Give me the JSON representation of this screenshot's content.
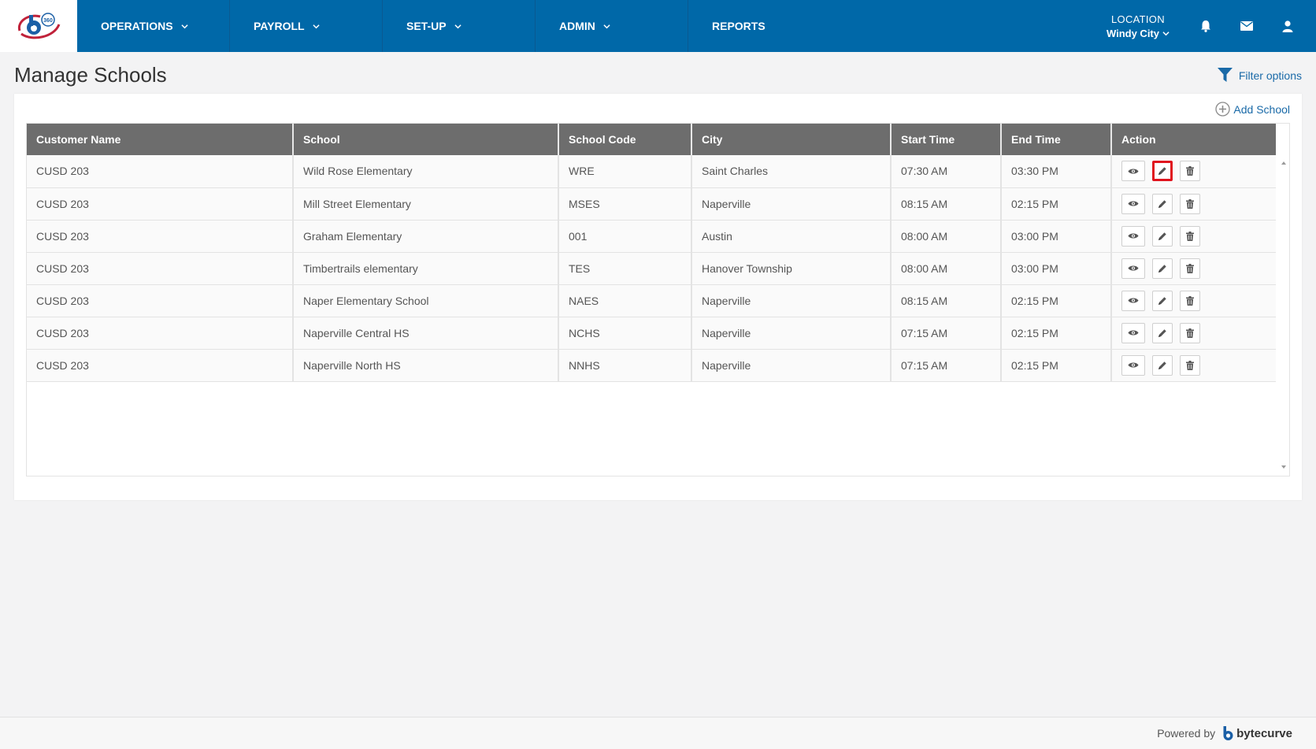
{
  "nav": {
    "items": [
      {
        "label": "OPERATIONS",
        "has_dropdown": true
      },
      {
        "label": "PAYROLL",
        "has_dropdown": true
      },
      {
        "label": "SET-UP",
        "has_dropdown": true
      },
      {
        "label": "ADMIN",
        "has_dropdown": true
      },
      {
        "label": "REPORTS",
        "has_dropdown": false
      }
    ],
    "location_label": "LOCATION",
    "location_value": "Windy City",
    "icons": [
      "bell-icon",
      "envelope-icon",
      "user-icon"
    ]
  },
  "page": {
    "title": "Manage Schools",
    "filter_label": "Filter options",
    "add_label": "Add School"
  },
  "table": {
    "columns": [
      "Customer Name",
      "School",
      "School Code",
      "City",
      "Start Time",
      "End Time",
      "Action"
    ],
    "rows": [
      {
        "customer": "CUSD 203",
        "school": "Wild Rose Elementary",
        "code": "WRE",
        "city": "Saint Charles",
        "start": "07:30 AM",
        "end": "03:30 PM"
      },
      {
        "customer": "CUSD 203",
        "school": "Mill Street Elementary",
        "code": "MSES",
        "city": "Naperville",
        "start": "08:15 AM",
        "end": "02:15 PM"
      },
      {
        "customer": "CUSD 203",
        "school": "Graham Elementary",
        "code": "001",
        "city": "Austin",
        "start": "08:00 AM",
        "end": "03:00 PM"
      },
      {
        "customer": "CUSD 203",
        "school": "Timbertrails elementary",
        "code": "TES",
        "city": "Hanover Township",
        "start": "08:00 AM",
        "end": "03:00 PM"
      },
      {
        "customer": "CUSD 203",
        "school": "Naper Elementary School",
        "code": "NAES",
        "city": "Naperville",
        "start": "08:15 AM",
        "end": "02:15 PM"
      },
      {
        "customer": "CUSD 203",
        "school": "Naperville Central HS",
        "code": "NCHS",
        "city": "Naperville",
        "start": "07:15 AM",
        "end": "02:15 PM"
      },
      {
        "customer": "CUSD 203",
        "school": "Naperville North HS",
        "code": "NNHS",
        "city": "Naperville",
        "start": "07:15 AM",
        "end": "02:15 PM"
      }
    ],
    "actions": [
      "view-icon",
      "edit-icon",
      "delete-icon"
    ],
    "highlighted": {
      "row": 0,
      "action": "edit"
    }
  },
  "footer": {
    "powered_by": "Powered by",
    "brand": "bytecurve"
  },
  "colors": {
    "nav_bg": "#0068a8",
    "header_bg": "#6d6d6d",
    "link": "#1a6aa8",
    "highlight": "#e0141e"
  }
}
